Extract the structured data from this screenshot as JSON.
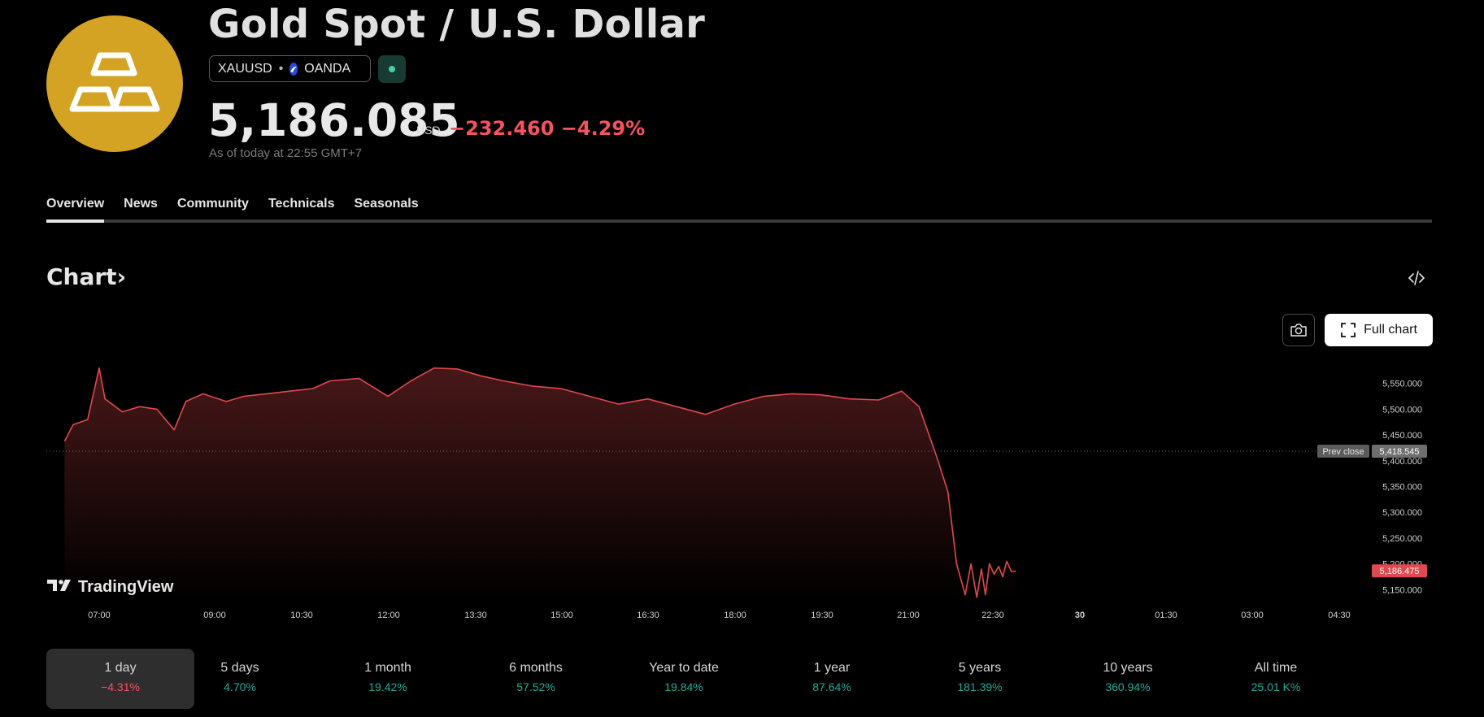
{
  "header": {
    "title": "Gold Spot / U.S. Dollar",
    "symbol": "XAUUSD",
    "separator": "•",
    "exchange": "OANDA",
    "price": "5,186.085",
    "currency": "USD",
    "change": "−232.460",
    "change_pct": "−4.29%",
    "as_of": "As of today at 22:55 GMT+7"
  },
  "tabs": [
    {
      "label": "Overview",
      "active": true
    },
    {
      "label": "News"
    },
    {
      "label": "Community"
    },
    {
      "label": "Technicals"
    },
    {
      "label": "Seasonals"
    }
  ],
  "chart_section": {
    "heading": "Chart",
    "heading_arrow": "›",
    "full_chart_label": "Full chart",
    "watermark": "TradingView"
  },
  "chart_data": {
    "type": "area",
    "x_tick_labels": [
      "07:00",
      "09:00",
      "10:30",
      "12:00",
      "13:30",
      "15:00",
      "16:30",
      "18:00",
      "19:30",
      "21:00",
      "22:30",
      "30",
      "01:30",
      "03:00",
      "04:30"
    ],
    "y_tick_labels": [
      "5,550.000",
      "5,500.000",
      "5,450.000",
      "5,400.000",
      "5,350.000",
      "5,300.000",
      "5,250.000",
      "5,200.000",
      "5,150.000"
    ],
    "y_ticks": [
      5550,
      5500,
      5450,
      5400,
      5350,
      5300,
      5250,
      5200,
      5150
    ],
    "ylim": [
      5130,
      5600
    ],
    "prev_close": {
      "label": "Prev close",
      "value": 5418.545,
      "display": "5,418.545"
    },
    "last": {
      "value": 5186.475,
      "display": "5,186.475"
    },
    "x_hours": [
      6.4,
      6.55,
      6.8,
      7.0,
      7.1,
      7.4,
      7.7,
      8.0,
      8.3,
      8.5,
      8.8,
      9.2,
      9.5,
      9.9,
      10.3,
      10.7,
      11.0,
      11.5,
      12.0,
      12.4,
      12.8,
      13.2,
      13.6,
      14.0,
      14.5,
      15.0,
      15.5,
      16.0,
      16.5,
      17.0,
      17.5,
      18.0,
      18.5,
      19.0,
      19.5,
      20.0,
      20.5,
      20.9,
      21.2,
      21.5,
      21.7,
      21.85,
      22.0,
      22.1,
      22.2,
      22.28,
      22.35,
      22.42,
      22.5,
      22.58,
      22.65,
      22.72,
      22.8,
      22.88
    ],
    "values": [
      5438,
      5470,
      5480,
      5580,
      5520,
      5495,
      5505,
      5500,
      5460,
      5515,
      5530,
      5515,
      5525,
      5530,
      5535,
      5540,
      5555,
      5560,
      5525,
      5555,
      5580,
      5578,
      5565,
      5555,
      5545,
      5540,
      5525,
      5510,
      5520,
      5505,
      5490,
      5510,
      5525,
      5530,
      5528,
      5520,
      5518,
      5535,
      5505,
      5410,
      5340,
      5200,
      5140,
      5200,
      5135,
      5190,
      5140,
      5200,
      5180,
      5195,
      5175,
      5205,
      5185,
      5186
    ]
  },
  "periods": [
    {
      "label": "1 day",
      "value": "−4.31%",
      "dir": "down",
      "active": true
    },
    {
      "label": "5 days",
      "value": "4.70%",
      "dir": "up"
    },
    {
      "label": "1 month",
      "value": "19.42%",
      "dir": "up"
    },
    {
      "label": "6 months",
      "value": "57.52%",
      "dir": "up"
    },
    {
      "label": "Year to date",
      "value": "19.84%",
      "dir": "up"
    },
    {
      "label": "1 year",
      "value": "87.64%",
      "dir": "up"
    },
    {
      "label": "5 years",
      "value": "181.39%",
      "dir": "up"
    },
    {
      "label": "10 years",
      "value": "360.94%",
      "dir": "up"
    },
    {
      "label": "All time",
      "value": "25.01 K%",
      "dir": "up"
    }
  ],
  "colors": {
    "logo": "#d4a323",
    "down": "#f7525f",
    "up": "#22ab94",
    "line": "#e0494d"
  },
  "icons": {
    "logo": "gold-bars-icon",
    "exchange": "oanda-icon",
    "dropdown": "chevron-down-icon",
    "embed": "code-embed-icon",
    "camera": "camera-icon",
    "fullscreen": "fullscreen-icon"
  }
}
